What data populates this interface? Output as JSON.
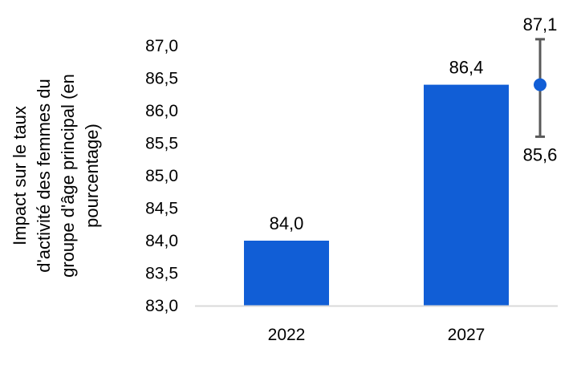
{
  "chart_data": {
    "type": "bar",
    "categories": [
      "2022",
      "2027"
    ],
    "values": [
      84.0,
      86.4
    ],
    "value_labels": [
      "84,0",
      "86,4"
    ],
    "ylabel_lines": [
      "Impact sur le taux",
      "d'activité des femmes du",
      "groupe d'âge principal (en",
      "pourcentage)"
    ],
    "ylim": [
      83.0,
      87.0
    ],
    "yticks": [
      {
        "v": 83.0,
        "label": "83,0"
      },
      {
        "v": 83.5,
        "label": "83,5"
      },
      {
        "v": 84.0,
        "label": "84,0"
      },
      {
        "v": 84.5,
        "label": "84,5"
      },
      {
        "v": 85.0,
        "label": "85,0"
      },
      {
        "v": 85.5,
        "label": "85,5"
      },
      {
        "v": 86.0,
        "label": "86,0"
      },
      {
        "v": 86.5,
        "label": "86,5"
      },
      {
        "v": 87.0,
        "label": "87,0"
      }
    ],
    "range_marker": {
      "point": 86.4,
      "high": 87.1,
      "low": 85.6,
      "high_label": "87,1",
      "low_label": "85,6"
    },
    "grid": false,
    "legend": "none",
    "colors": {
      "bar": "#115ed6",
      "marker": "#115ed6",
      "whisker": "#595959",
      "axis": "#d9d9d9"
    }
  }
}
